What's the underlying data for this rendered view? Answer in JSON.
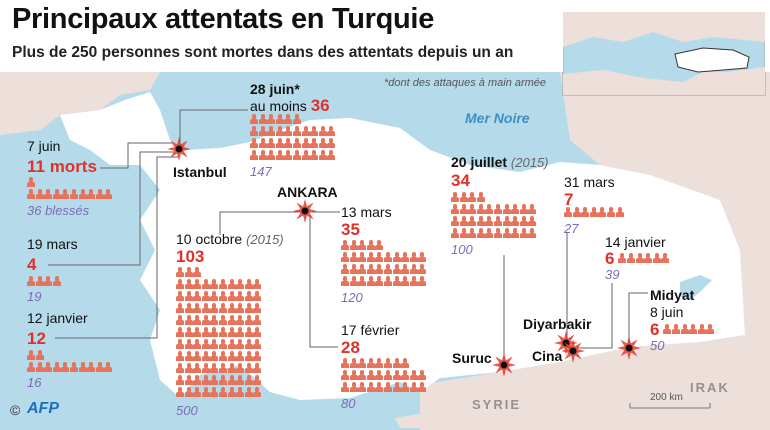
{
  "title": "Principaux attentats en Turquie",
  "subtitle": "Plus de 250 personnes sont mortes dans des attentats depuis un an",
  "note": "*dont des attaques à main armée",
  "labels": {
    "sea": "Mer Noire",
    "syria": "SYRIE",
    "iraq": "IRAK",
    "scale": "200 km",
    "credit_symbol": "©",
    "credit": "AFP"
  },
  "cities": {
    "istanbul": "Istanbul",
    "ankara": "ANKARA",
    "suruc": "Suruc",
    "diyarbakir": "Diyarbakir",
    "cina": "Cina",
    "midyat": "Midyat"
  },
  "attacks": [
    {
      "id": "istanbul-7juin",
      "date": "7 juin",
      "deaths": 11,
      "deaths_label": "11 morts",
      "injured": "36 blessés"
    },
    {
      "id": "istanbul-19mars",
      "date": "19 mars",
      "deaths": 4,
      "deaths_label": "4",
      "injured": "19"
    },
    {
      "id": "istanbul-12janvier",
      "date": "12 janvier",
      "deaths": 12,
      "deaths_label": "12",
      "injured": "16"
    },
    {
      "id": "istanbul-28juin",
      "date": "28 juin*",
      "prefix": "au moins",
      "deaths": 36,
      "deaths_label": "36",
      "injured": "147"
    },
    {
      "id": "ankara-13mars",
      "date": "13 mars",
      "deaths": 35,
      "deaths_label": "35",
      "injured": "120"
    },
    {
      "id": "ankara-10octobre",
      "date": "10 octobre",
      "year": "(2015)",
      "deaths": 103,
      "deaths_label": "103",
      "injured": "500"
    },
    {
      "id": "ankara-17fevrier",
      "date": "17 février",
      "deaths": 28,
      "deaths_label": "28",
      "injured": "80"
    },
    {
      "id": "suruc-20juillet",
      "date": "20 juillet",
      "year": "(2015)",
      "deaths": 34,
      "deaths_label": "34",
      "injured": "100"
    },
    {
      "id": "diyarbakir-31mars",
      "date": "31 mars",
      "deaths": 7,
      "deaths_label": "7",
      "injured": "27"
    },
    {
      "id": "cina-14janvier",
      "date": "14 janvier",
      "deaths": 6,
      "deaths_label": "6",
      "injured": "39"
    },
    {
      "id": "midyat-8juin",
      "date": "8 juin",
      "deaths": 6,
      "deaths_label": "6",
      "injured": "50"
    }
  ],
  "colors": {
    "sea": "#b5dbeb",
    "land": "#ffffff",
    "neighbors": "#ede0db",
    "deaths": "#e0312b",
    "figures": "#e6735c",
    "injured": "#7d6bb5"
  }
}
